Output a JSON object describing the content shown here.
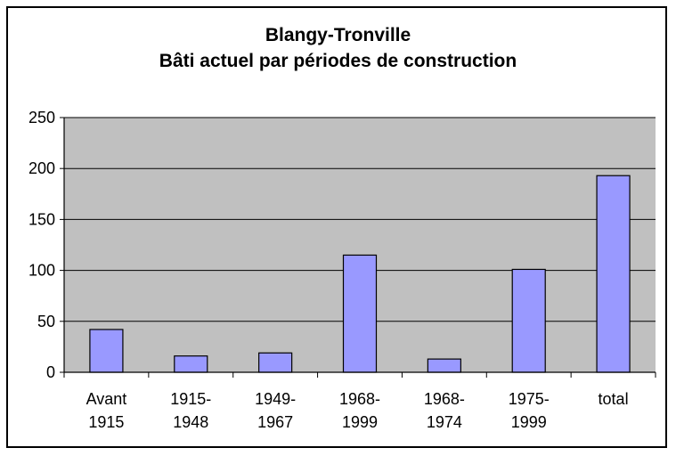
{
  "chart_data": {
    "type": "bar",
    "title": "Blangy-Tronville",
    "subtitle": "Bâti actuel par périodes de construction",
    "xlabel": "",
    "ylabel": "",
    "categories": [
      [
        "Avant",
        "1915"
      ],
      [
        "1915-",
        "1948"
      ],
      [
        "1949-",
        "1967"
      ],
      [
        "1968-",
        "1999"
      ],
      [
        "1968-",
        "1974"
      ],
      [
        "1975-",
        "1999"
      ],
      [
        "total"
      ]
    ],
    "values": [
      42,
      16,
      19,
      115,
      13,
      101,
      193
    ],
    "ylim": [
      0,
      250
    ],
    "yticks": [
      0,
      50,
      100,
      150,
      200,
      250
    ],
    "grid": true,
    "legend": "none",
    "colors": {
      "bar": "#9999ff",
      "plot_background": "#c0c0c0",
      "gridline": "#000000",
      "axis": "#000000"
    }
  }
}
